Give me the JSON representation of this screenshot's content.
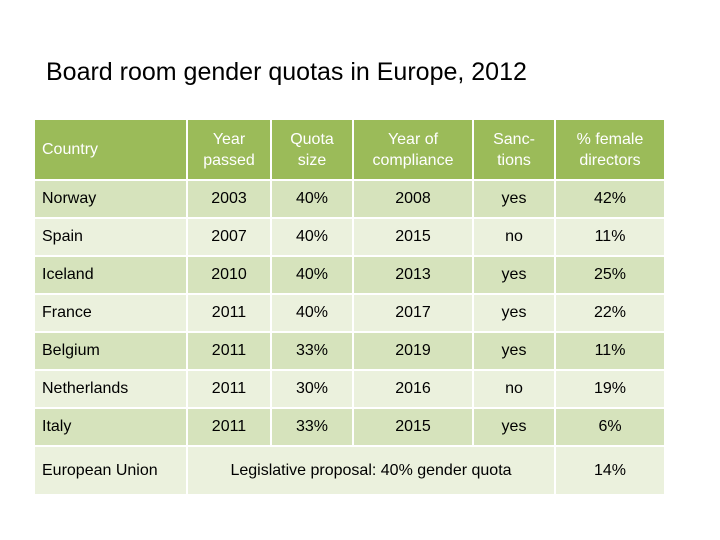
{
  "title": "Board room gender quotas in Europe, 2012",
  "headers": {
    "country": "Country",
    "year_passed": [
      "Year",
      "passed"
    ],
    "quota_size": [
      "Quota",
      "size"
    ],
    "year_compliance": [
      "Year of",
      "compliance"
    ],
    "sanctions": [
      "Sanc-",
      "tions"
    ],
    "female_directors": [
      "% female",
      "directors"
    ]
  },
  "rows": [
    {
      "country": "Norway",
      "year_passed": "2003",
      "quota": "40%",
      "compliance": "2008",
      "sanctions": "yes",
      "female": "42%"
    },
    {
      "country": "Spain",
      "year_passed": "2007",
      "quota": "40%",
      "compliance": "2015",
      "sanctions": "no",
      "female": "11%"
    },
    {
      "country": "Iceland",
      "year_passed": "2010",
      "quota": "40%",
      "compliance": "2013",
      "sanctions": "yes",
      "female": "25%"
    },
    {
      "country": "France",
      "year_passed": "2011",
      "quota": "40%",
      "compliance": "2017",
      "sanctions": "yes",
      "female": "22%"
    },
    {
      "country": "Belgium",
      "year_passed": "2011",
      "quota": "33%",
      "compliance": "2019",
      "sanctions": "yes",
      "female": "11%"
    },
    {
      "country": "Netherlands",
      "year_passed": "2011",
      "quota": "30%",
      "compliance": "2016",
      "sanctions": "no",
      "female": "19%"
    },
    {
      "country": "Italy",
      "year_passed": "2011",
      "quota": "33%",
      "compliance": "2015",
      "sanctions": "yes",
      "female": "6%"
    }
  ],
  "eu_row": {
    "country": "European Union",
    "proposal": "Legislative proposal: 40% gender quota",
    "female": "14%"
  },
  "colors": {
    "header_bg": "#9bbb59",
    "row_dark": "#d6e3bc",
    "row_light": "#ebf1dd"
  }
}
